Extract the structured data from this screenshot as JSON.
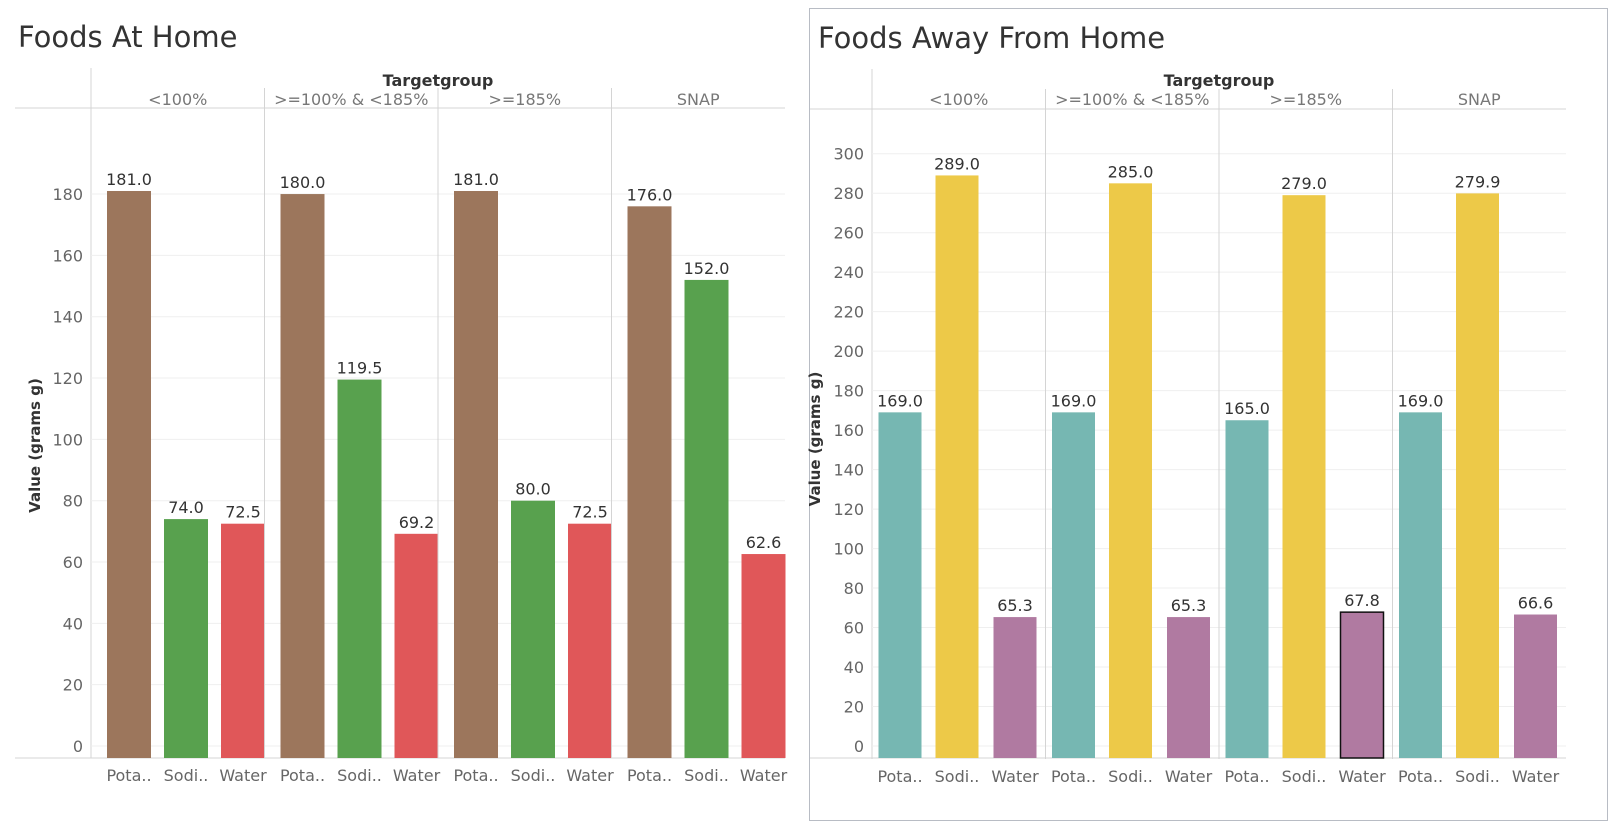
{
  "chart_data": [
    {
      "type": "bar",
      "title": "Foods At Home",
      "column_header": "Targetgroup",
      "ylabel": "Value (grams g)",
      "ylim": [
        0,
        196
      ],
      "yticks": [
        0,
        20,
        40,
        60,
        80,
        100,
        120,
        140,
        160,
        180
      ],
      "panels": [
        {
          "name": "<100%",
          "categories": [
            "Pota..",
            "Sodi..",
            "Water"
          ],
          "values": [
            181.0,
            74.0,
            72.5
          ]
        },
        {
          "name": ">=100% & <185%",
          "categories": [
            "Pota..",
            "Sodi..",
            "Water"
          ],
          "values": [
            180.0,
            119.5,
            69.2
          ]
        },
        {
          "name": ">=185%",
          "categories": [
            "Pota..",
            "Sodi..",
            "Water"
          ],
          "values": [
            181.0,
            80.0,
            72.5
          ]
        },
        {
          "name": "SNAP",
          "categories": [
            "Pota..",
            "Sodi..",
            "Water"
          ],
          "values": [
            176.0,
            152.0,
            62.6
          ]
        }
      ],
      "value_labels": [
        [
          "181.0",
          "74.0",
          "72.5"
        ],
        [
          "180.0",
          "119.5",
          "69.2"
        ],
        [
          "181.0",
          "80.0",
          "72.5"
        ],
        [
          "176.0",
          "152.0",
          "62.6"
        ]
      ],
      "colors": [
        "#9c765c",
        "#58a14e",
        "#e05759"
      ]
    },
    {
      "type": "bar",
      "title": "Foods Away From Home",
      "column_header": "Targetgroup",
      "ylabel": "Value (grams g)",
      "ylim": [
        0,
        311
      ],
      "yticks": [
        0,
        20,
        40,
        60,
        80,
        100,
        120,
        140,
        160,
        180,
        200,
        220,
        240,
        260,
        280,
        300
      ],
      "panels": [
        {
          "name": "<100%",
          "categories": [
            "Pota..",
            "Sodi..",
            "Water"
          ],
          "values": [
            169.0,
            289.0,
            65.3
          ]
        },
        {
          "name": ">=100% & <185%",
          "categories": [
            "Pota..",
            "Sodi..",
            "Water"
          ],
          "values": [
            169.0,
            285.0,
            65.3
          ]
        },
        {
          "name": ">=185%",
          "categories": [
            "Pota..",
            "Sodi..",
            "Water"
          ],
          "values": [
            165.0,
            279.0,
            67.8
          ]
        },
        {
          "name": "SNAP",
          "categories": [
            "Pota..",
            "Sodi..",
            "Water"
          ],
          "values": [
            169.0,
            279.9,
            66.6
          ]
        }
      ],
      "value_labels": [
        [
          "169.0",
          "289.0",
          "65.3"
        ],
        [
          "169.0",
          "285.0",
          "65.3"
        ],
        [
          "165.0",
          "279.0",
          "67.8"
        ],
        [
          "169.0",
          "279.9",
          "66.6"
        ]
      ],
      "colors": [
        "#76b7b2",
        "#edc948",
        "#b07aa1"
      ],
      "highlighted_bar": {
        "panel": ">=185%",
        "category": "Water"
      }
    }
  ]
}
